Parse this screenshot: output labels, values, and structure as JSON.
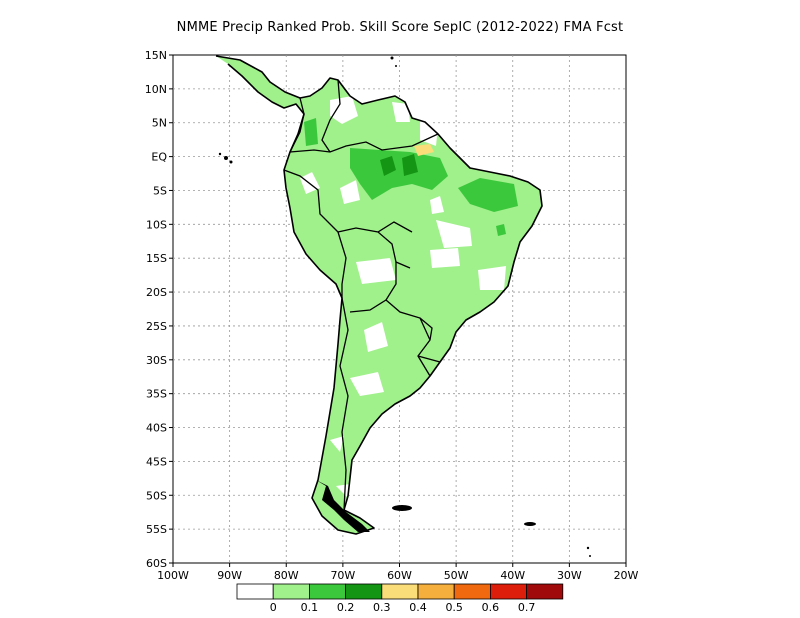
{
  "title": "NMME Precip Ranked Prob. Skill Score SepIC (2012-2022) FMA Fcst",
  "map": {
    "lon_range": [
      -100,
      -20
    ],
    "lat_range": [
      -60,
      15
    ],
    "lat_ticks": [
      "15N",
      "10N",
      "5N",
      "EQ",
      "5S",
      "10S",
      "15S",
      "20S",
      "25S",
      "30S",
      "35S",
      "40S",
      "45S",
      "50S",
      "55S",
      "60S"
    ],
    "lon_ticks": [
      "100W",
      "90W",
      "80W",
      "70W",
      "60W",
      "50W",
      "40W",
      "30W",
      "20W"
    ],
    "grid": "dotted"
  },
  "colorbar": {
    "labels": [
      "0",
      "0.1",
      "0.2",
      "0.3",
      "0.4",
      "0.5",
      "0.6",
      "0.7"
    ],
    "colors": [
      "#ffffff",
      "#a0f08c",
      "#3cc83c",
      "#149614",
      "#fadc78",
      "#f5af3c",
      "#f0690f",
      "#dc1e0a",
      "#a00a0a"
    ]
  },
  "colors": {
    "land_low_skill": "#a0f08c",
    "land_mid_skill": "#3cc83c",
    "land_high_skill": "#149614",
    "coast": "#000000"
  }
}
